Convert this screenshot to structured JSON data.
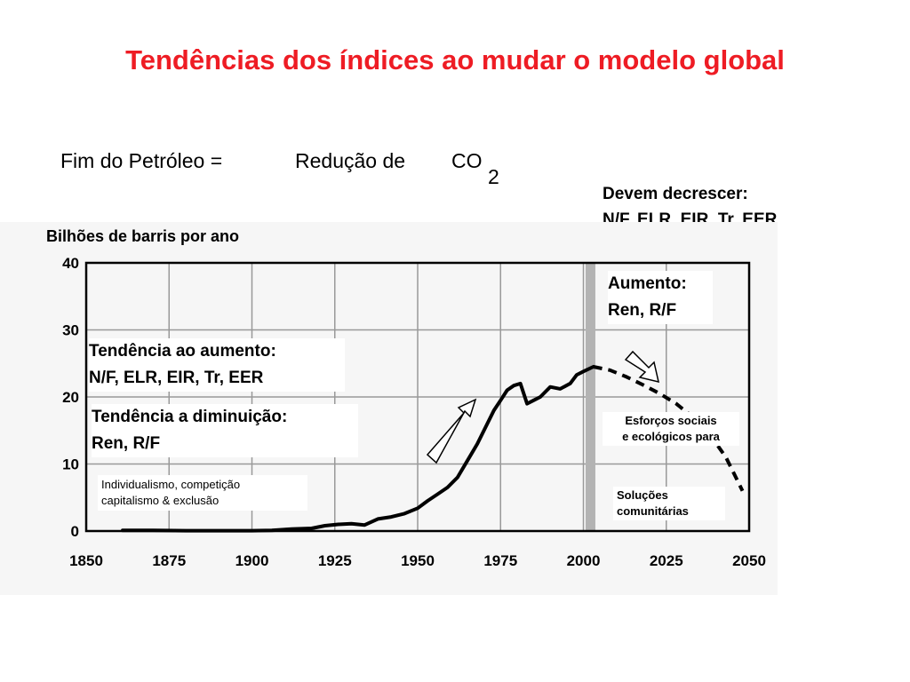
{
  "slide": {
    "title": "Tendências dos índices ao mudar o modelo global",
    "subtitle_part1": "Fim do Petróleo =",
    "subtitle_part2": "Redução de",
    "subtitle_co": "CO",
    "subtitle_sub": "2",
    "devem_line1": "Devem decrescer:",
    "devem_line2": "N/F, ELR, EIR, Tr, EER"
  },
  "annotations": {
    "aumento_line1": "Aumento:",
    "aumento_line2": "Ren, R/F",
    "tend_aumento_line1": "Tendência ao aumento:",
    "tend_aumento_line2": "N/F, ELR, EIR, Tr, EER",
    "tend_dim_line1": "Tendência a diminuição:",
    "tend_dim_line2": "Ren, R/F",
    "indiv_line1": "Individualismo, competição",
    "indiv_line2": "capitalismo & exclusão",
    "esforcos_line1": "Esforços sociais",
    "esforcos_line2": "e ecológicos para",
    "solucoes_line1": "Soluções",
    "solucoes_line2": "comunitárias"
  },
  "colors": {
    "title": "#ee1c24",
    "curve": "#000000",
    "divider": "#b3b3b3"
  },
  "chart_data": {
    "type": "line",
    "title": "",
    "xlabel": "",
    "ylabel": "Bilhões de barris por ano",
    "xlim": [
      1850,
      2050
    ],
    "ylim": [
      0,
      40
    ],
    "x_ticks": [
      1850,
      1875,
      1900,
      1925,
      1950,
      1975,
      2000,
      2025,
      2050
    ],
    "y_ticks": [
      0,
      10,
      20,
      30,
      40
    ],
    "grid": true,
    "divider_year": 2002,
    "series": [
      {
        "name": "",
        "style": "solid",
        "x": [
          1861,
          1870,
          1880,
          1890,
          1900,
          1906,
          1912,
          1918,
          1922,
          1926,
          1930,
          1934,
          1938,
          1942,
          1946,
          1950,
          1953,
          1956,
          1959,
          1962,
          1965,
          1968,
          1971,
          1973,
          1975,
          1977,
          1979,
          1981,
          1983,
          1985,
          1987,
          1990,
          1993,
          1996,
          1998,
          2000,
          2003
        ],
        "y": [
          0.1,
          0.1,
          0.05,
          0.05,
          0.05,
          0.1,
          0.3,
          0.4,
          0.8,
          1.0,
          1.1,
          0.9,
          1.8,
          2.1,
          2.6,
          3.4,
          4.5,
          5.5,
          6.5,
          8.0,
          10.5,
          13.0,
          16.0,
          18.0,
          19.5,
          21.0,
          21.7,
          22.0,
          19.0,
          19.5,
          20.0,
          21.5,
          21.2,
          22.0,
          23.3,
          23.8,
          24.5
        ]
      },
      {
        "name": "",
        "style": "dashed",
        "x": [
          2003,
          2008,
          2013,
          2018,
          2023,
          2028,
          2033,
          2038,
          2043,
          2048
        ],
        "y": [
          24.5,
          24.0,
          23.0,
          21.8,
          20.5,
          19.0,
          17.0,
          14.5,
          11.0,
          6.0
        ]
      }
    ]
  }
}
